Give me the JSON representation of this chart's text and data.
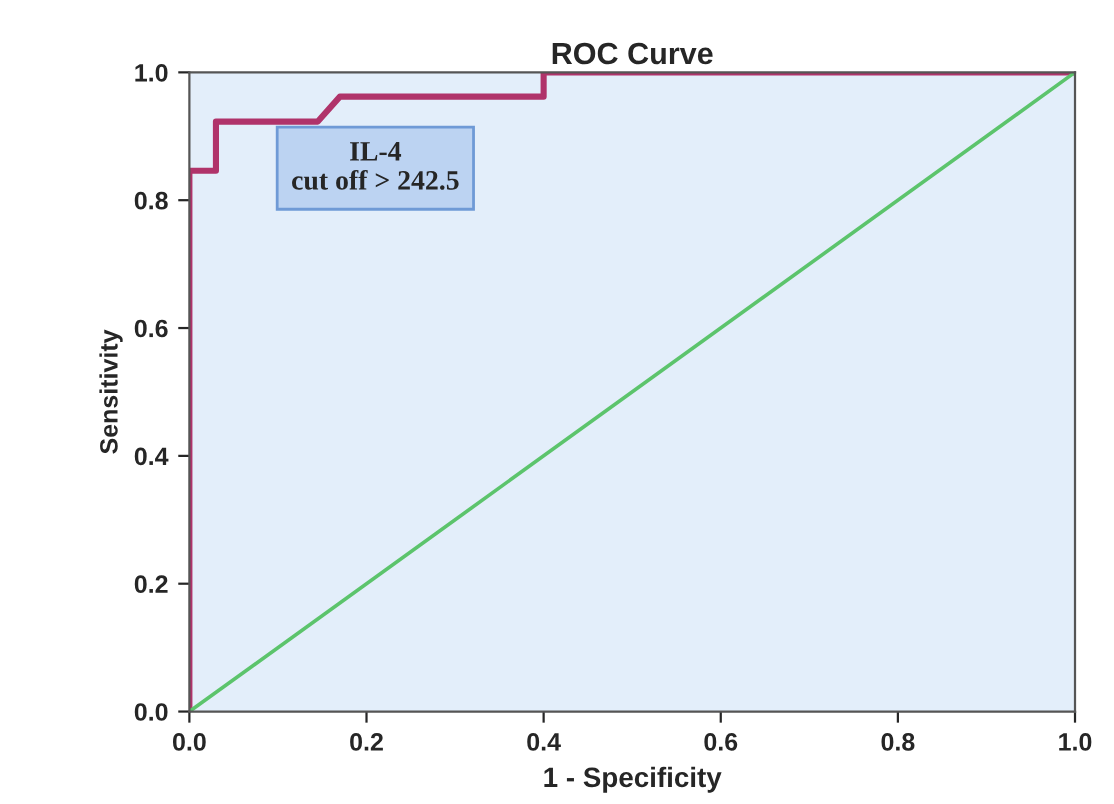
{
  "chart_data": {
    "type": "line",
    "title": "ROC Curve",
    "xlabel": "1 - Specificity",
    "ylabel": "Sensitivity",
    "annotations": [
      "IL-4\ncut off > 242.5"
    ],
    "series": [
      {
        "color": "#b0336a",
        "x": [
          0,
          0,
          0.03,
          0.03,
          0.145,
          0.17,
          0.4,
          0.4,
          1
        ],
        "values": [
          0,
          0.846,
          0.846,
          0.923,
          0.923,
          0.962,
          0.962,
          1,
          1
        ]
      },
      {
        "color": "#5cc46c",
        "x": [
          0,
          1
        ],
        "values": [
          0,
          1
        ]
      }
    ],
    "xlim": [
      0,
      1
    ],
    "ylim": [
      0,
      1
    ],
    "xticks": [
      {
        "value": 0,
        "label": "0.0"
      },
      {
        "value": 0.2,
        "label": "0.2"
      },
      {
        "value": 0.4,
        "label": "0.4"
      },
      {
        "value": 0.6,
        "label": "0.6"
      },
      {
        "value": 0.8,
        "label": "0.8"
      },
      {
        "value": 1,
        "label": "1.0"
      }
    ],
    "yticks": [
      {
        "value": 0,
        "label": "0.0"
      },
      {
        "value": 0.2,
        "label": "0.2"
      },
      {
        "value": 0.4,
        "label": "0.4"
      },
      {
        "value": 0.6,
        "label": "0.6"
      },
      {
        "value": 0.8,
        "label": "0.8"
      },
      {
        "value": 1,
        "label": "1.0"
      }
    ],
    "grid": false,
    "legend": false
  }
}
